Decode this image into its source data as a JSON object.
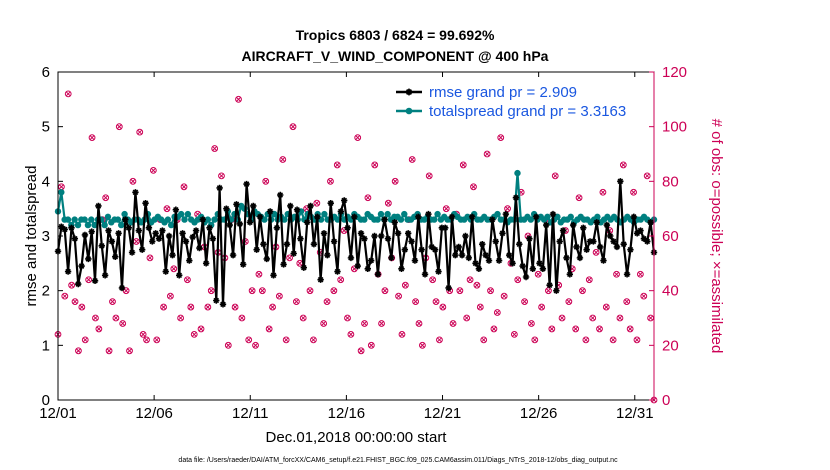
{
  "chart_data": {
    "type": "line",
    "title": "Tropics 6803 / 6824 = 99.692%",
    "subtitle": "AIRCRAFT_V_WIND_COMPONENT @ 400 hPa",
    "xlabel": "Dec.01,2018 00:00:00 start",
    "ylabel": "rmse and totalspread",
    "y2label": "# of obs: o=possible; ×=assimilated",
    "footer": "data file: /Users/raeder/DAI/ATM_forcXX/CAM6_setup/f.e21.FHIST_BGC.f09_025.CAM6assim.011/Diags_NTrS_2018-12/obs_diag_output.nc",
    "x_ticks": [
      "12/01",
      "12/06",
      "12/11",
      "12/16",
      "12/21",
      "12/26",
      "12/31"
    ],
    "x_tick_days": [
      0,
      5,
      10,
      15,
      20,
      25,
      30
    ],
    "xlim": [
      0,
      31
    ],
    "ylim": [
      0,
      6
    ],
    "y_ticks": [
      0,
      1,
      2,
      3,
      4,
      5,
      6
    ],
    "y2lim": [
      0,
      120
    ],
    "y2_ticks": [
      0,
      20,
      40,
      60,
      80,
      100,
      120
    ],
    "colors": {
      "rmse": "#000000",
      "spread": "#008080",
      "obs": "#cc0055",
      "legend_text": "#1a57e0"
    },
    "series": [
      {
        "name": "rmse grand pr = 2.909",
        "marker": "star",
        "values": [
          2.72,
          3.17,
          3.12,
          2.35,
          3.15,
          2.95,
          2.12,
          2.45,
          3.02,
          2.58,
          3.08,
          2.18,
          3.55,
          2.82,
          2.28,
          3.1,
          2.9,
          2.62,
          3.05,
          2.05,
          3.3,
          3.15,
          2.7,
          3.8,
          3.1,
          2.75,
          3.6,
          3.15,
          2.9,
          3.05,
          2.95,
          3.1,
          2.35,
          3.0,
          2.65,
          3.48,
          2.28,
          3.05,
          2.9,
          2.55,
          2.98,
          3.1,
          2.78,
          3.3,
          2.5,
          3.15,
          2.95,
          1.82,
          3.88,
          1.75,
          3.5,
          3.2,
          2.65,
          3.58,
          3.22,
          2.48,
          3.95,
          3.25,
          3.55,
          2.75,
          3.35,
          2.85,
          2.58,
          3.45,
          2.28,
          3.15,
          3.75,
          2.48,
          2.85,
          3.55,
          2.68,
          3.48,
          2.95,
          2.42,
          3.25,
          3.55,
          2.85,
          3.35,
          2.2,
          3.05,
          2.65,
          3.6,
          2.9,
          2.35,
          3.45,
          3.65,
          3.15,
          2.6,
          3.35,
          2.45,
          3.05,
          2.95,
          2.4,
          2.55,
          3.0,
          2.3,
          3.0,
          3.3,
          2.95,
          2.6,
          3.25,
          3.05,
          2.4,
          2.75,
          3.05,
          2.9,
          2.55,
          3.35,
          2.75,
          2.3,
          3.4,
          2.8,
          2.75,
          2.35,
          3.15,
          3.15,
          2.05,
          3.35,
          2.65,
          2.8,
          2.65,
          3.0,
          2.6,
          3.35,
          2.5,
          2.4,
          2.85,
          2.65,
          2.55,
          3.3,
          2.9,
          2.55,
          3.05,
          3.4,
          2.65,
          2.5,
          3.7,
          2.85,
          2.45,
          2.25,
          2.95,
          2.4,
          3.35,
          2.5,
          2.4,
          3.2,
          2.1,
          3.4,
          2.0,
          2.9,
          3.1,
          2.6,
          2.3,
          3.2,
          2.8,
          2.6,
          3.15,
          2.75,
          2.9,
          2.9,
          3.25,
          2.8,
          2.55,
          3.2,
          3.0,
          2.9,
          2.8,
          4.0,
          2.85,
          2.3,
          2.75,
          3.35,
          3.05,
          3.1,
          2.95,
          2.9,
          3.25,
          2.7
        ]
      },
      {
        "name": "totalspread grand pr = 3.3163",
        "marker": "circle",
        "values": [
          3.45,
          3.8,
          3.3,
          3.3,
          3.2,
          3.3,
          3.2,
          3.3,
          3.3,
          3.2,
          3.3,
          3.2,
          3.3,
          3.3,
          3.2,
          3.35,
          3.25,
          3.3,
          3.3,
          3.2,
          3.4,
          3.3,
          3.25,
          3.3,
          3.3,
          3.25,
          3.3,
          3.4,
          3.25,
          3.3,
          3.35,
          3.3,
          3.25,
          3.3,
          3.2,
          3.35,
          3.35,
          3.4,
          3.3,
          3.4,
          3.3,
          3.25,
          3.3,
          3.35,
          3.25,
          3.3,
          3.2,
          3.3,
          3.4,
          3.3,
          3.3,
          3.45,
          3.3,
          3.4,
          3.3,
          3.55,
          3.5,
          3.4,
          3.3,
          3.45,
          3.4,
          3.35,
          3.3,
          3.4,
          3.3,
          3.4,
          3.3,
          3.35,
          3.3,
          3.4,
          3.3,
          3.35,
          3.3,
          3.45,
          3.3,
          3.4,
          3.35,
          3.3,
          3.4,
          3.3,
          3.4,
          3.3,
          3.3,
          3.35,
          3.3,
          3.4,
          3.3,
          3.35,
          3.3,
          3.4,
          3.35,
          3.3,
          3.3,
          3.4,
          3.35,
          3.3,
          3.3,
          3.4,
          3.3,
          3.4,
          3.3,
          3.35,
          3.35,
          3.3,
          3.4,
          3.3,
          3.3,
          3.35,
          3.4,
          3.3,
          3.3,
          3.35,
          3.3,
          3.3,
          3.4,
          3.3,
          3.35,
          3.3,
          3.3,
          3.4,
          3.35,
          3.3,
          3.3,
          3.35,
          3.3,
          3.4,
          3.3,
          3.3,
          3.35,
          3.3,
          3.3,
          3.35,
          3.4,
          3.3,
          3.3,
          3.25,
          3.3,
          3.3,
          4.15,
          3.3,
          3.3,
          3.35,
          3.3,
          3.4,
          3.3,
          3.35,
          3.3,
          3.35,
          3.25,
          3.3,
          3.35,
          3.25,
          3.3,
          3.3,
          3.35,
          3.25,
          3.3,
          3.35,
          3.3,
          3.3,
          3.25,
          3.3,
          3.35,
          3.25,
          3.3,
          3.35,
          3.3,
          3.35,
          3.3,
          3.25,
          3.3,
          3.35,
          3.3,
          3.25,
          3.3,
          3.3,
          3.35,
          3.3,
          3.25,
          3.3
        ]
      }
    ],
    "obs_possible": [
      24,
      78,
      38,
      112,
      42,
      36,
      18,
      34,
      22,
      44,
      96,
      30,
      26,
      66,
      74,
      18,
      36,
      30,
      100,
      28,
      40,
      18,
      80,
      58,
      98,
      24,
      22,
      52,
      84,
      22,
      66,
      34,
      70,
      38,
      48,
      66,
      30,
      78,
      44,
      34,
      24,
      68,
      26,
      56,
      34,
      40,
      92,
      54,
      82,
      52,
      20,
      66,
      34,
      110,
      30,
      58,
      22,
      40,
      20,
      46,
      40,
      80,
      26,
      34,
      56,
      38,
      88,
      22,
      52,
      100,
      36,
      50,
      30,
      70,
      40,
      22,
      72,
      54,
      28,
      36,
      80,
      40,
      86,
      44,
      62,
      30,
      24,
      48,
      96,
      18,
      28,
      74,
      20,
      86,
      46,
      28,
      40,
      72,
      52,
      80,
      38,
      24,
      42,
      66,
      88,
      36,
      28,
      20,
      52,
      82,
      44,
      36,
      22,
      34,
      70,
      40,
      28,
      68,
      40,
      86,
      30,
      44,
      78,
      42,
      34,
      22,
      90,
      40,
      26,
      32,
      96,
      38,
      70,
      50,
      24,
      44,
      76,
      36,
      60,
      28,
      22,
      46,
      34,
      66,
      40,
      26,
      82,
      42,
      30,
      62,
      36,
      48,
      26,
      74,
      40,
      22,
      44,
      30,
      54,
      26,
      76,
      34,
      62,
      22,
      46,
      30,
      86,
      36,
      26,
      76,
      22,
      46,
      38,
      82,
      30,
      0
    ]
  }
}
